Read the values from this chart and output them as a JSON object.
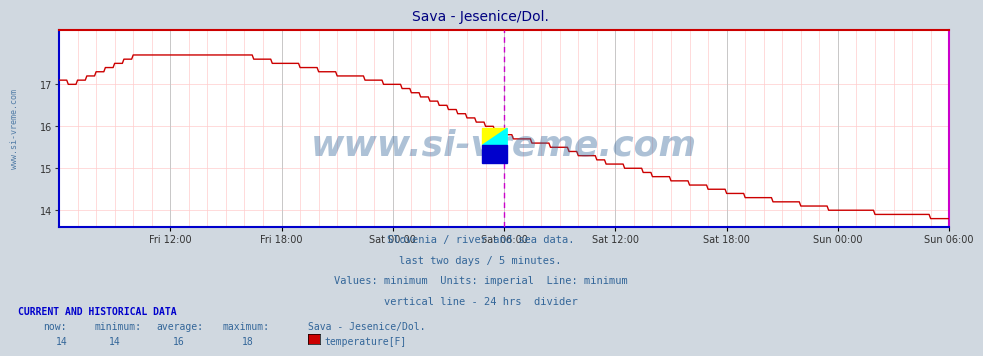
{
  "title": "Sava - Jesenice/Dol.",
  "title_color": "#000080",
  "background_color": "#d0d8e0",
  "plot_bg_color": "#ffffff",
  "grid_color_major": "#c8c8c8",
  "grid_color_minor": "#ffcccc",
  "watermark": "www.si-vreme.com",
  "watermark_color": "#336699",
  "watermark_alpha": 0.4,
  "line_color": "#cc0000",
  "line_width": 1.0,
  "ylim": [
    13.6,
    18.3
  ],
  "yticks": [
    14,
    15,
    16,
    17
  ],
  "subtitle_lines": [
    "Slovenia / river and sea data.",
    "last two days / 5 minutes.",
    "Values: minimum  Units: imperial  Line: minimum",
    "vertical line - 24 hrs  divider"
  ],
  "subtitle_color": "#336699",
  "footer_label": "CURRENT AND HISTORICAL DATA",
  "footer_color": "#0000cc",
  "footer_items": {
    "now": "14",
    "minimum": "14",
    "average": "16",
    "maximum": "18",
    "station": "Sava - Jesenice/Dol.",
    "series": "temperature[F]",
    "swatch_color": "#cc0000"
  },
  "x_tick_labels": [
    "Fri 12:00",
    "Fri 18:00",
    "Sat 00:00",
    "Sat 06:00",
    "Sat 12:00",
    "Sat 18:00",
    "Sun 00:00",
    "Sun 06:00"
  ],
  "x_tick_positions": [
    72,
    144,
    216,
    288,
    360,
    432,
    504,
    576
  ],
  "total_points": 577,
  "left_border_color": "#0000cc",
  "right_border_color": "#cc00cc",
  "top_border_color": "#cc0000",
  "bottom_border_color": "#0000cc",
  "divider_line_x": 288,
  "divider_line_color": "#cc00cc",
  "left_watermark": "www.si-vreme.com",
  "left_watermark_color": "#336699"
}
